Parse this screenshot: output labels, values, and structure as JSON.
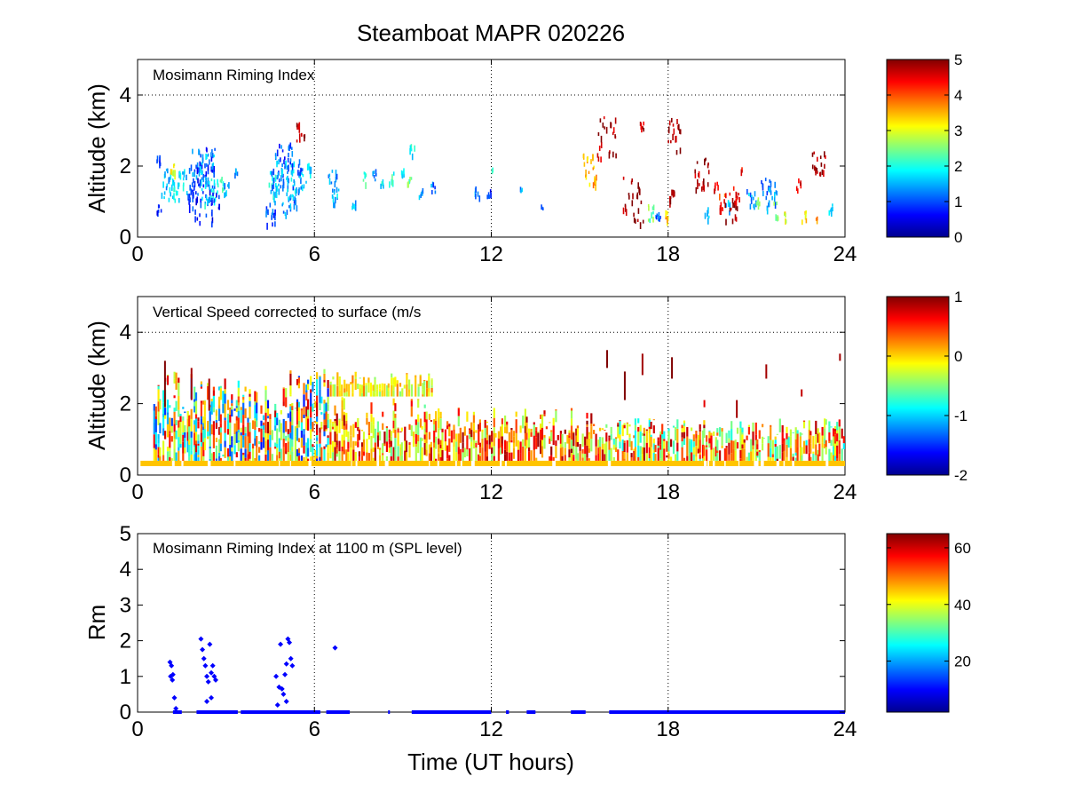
{
  "chart_data": [
    {
      "type": "heatmap",
      "figure_title": "Steamboat MAPR 020226",
      "annotation": "Mosimann Riming Index",
      "xlabel": "",
      "ylabel": "Altitude (km)",
      "xlim": [
        0,
        24
      ],
      "ylim": [
        0,
        5
      ],
      "xticks": [
        0,
        6,
        12,
        18,
        24
      ],
      "yticks": [
        0,
        2,
        4
      ],
      "grid_x": [
        6,
        12,
        18
      ],
      "grid_y": [
        4
      ],
      "colorbar": {
        "min": 0,
        "max": 5,
        "ticks": [
          0,
          1,
          2,
          3,
          4,
          5
        ]
      },
      "points": [
        [
          0.7,
          2.2,
          0.8,
          0.2
        ],
        [
          0.7,
          0.8,
          0.6,
          0.2
        ],
        [
          1.0,
          1.5,
          1.6,
          0.6
        ],
        [
          1.2,
          1.9,
          3.0,
          0.3
        ],
        [
          1.3,
          1.4,
          1.9,
          0.4
        ],
        [
          1.5,
          1.6,
          1.7,
          0.4
        ],
        [
          1.8,
          1.3,
          0.9,
          0.3
        ],
        [
          2.0,
          2.1,
          1.2,
          0.5
        ],
        [
          2.1,
          1.6,
          1.1,
          0.8
        ],
        [
          2.2,
          1.2,
          0.8,
          1.2
        ],
        [
          2.3,
          1.8,
          1.5,
          0.7
        ],
        [
          2.4,
          1.4,
          1.8,
          0.6
        ],
        [
          2.5,
          2.2,
          1.0,
          0.5
        ],
        [
          2.6,
          1.0,
          0.7,
          0.4
        ],
        [
          2.8,
          1.5,
          2.2,
          0.3
        ],
        [
          3.0,
          1.4,
          1.3,
          0.2
        ],
        [
          3.3,
          1.9,
          1.2,
          0.2
        ],
        [
          4.5,
          0.7,
          1.0,
          0.4
        ],
        [
          4.6,
          1.5,
          1.8,
          0.5
        ],
        [
          4.8,
          2.0,
          1.2,
          0.8
        ],
        [
          4.9,
          1.4,
          1.4,
          1.0
        ],
        [
          5.0,
          2.2,
          1.0,
          0.6
        ],
        [
          5.1,
          1.7,
          1.6,
          0.7
        ],
        [
          5.3,
          1.2,
          1.2,
          0.4
        ],
        [
          5.5,
          2.0,
          1.0,
          0.3
        ],
        [
          5.5,
          3.0,
          4.8,
          0.4
        ],
        [
          5.6,
          1.6,
          1.5,
          0.3
        ],
        [
          5.8,
          2.0,
          1.7,
          0.2
        ],
        [
          6.6,
          1.6,
          1.3,
          0.4
        ],
        [
          6.7,
          1.2,
          1.6,
          0.3
        ],
        [
          7.3,
          1.0,
          1.5,
          0.2
        ],
        [
          7.7,
          1.7,
          2.2,
          0.2
        ],
        [
          8.0,
          1.8,
          1.4,
          0.2
        ],
        [
          8.3,
          1.5,
          1.9,
          0.2
        ],
        [
          8.6,
          1.7,
          2.0,
          0.2
        ],
        [
          9.0,
          1.8,
          1.6,
          0.2
        ],
        [
          9.2,
          1.6,
          2.4,
          0.2
        ],
        [
          9.3,
          2.5,
          1.9,
          0.2
        ],
        [
          9.6,
          1.3,
          1.5,
          0.2
        ],
        [
          10.0,
          1.4,
          1.2,
          0.2
        ],
        [
          11.5,
          1.3,
          1.4,
          0.2
        ],
        [
          11.9,
          1.2,
          0.9,
          0.2
        ],
        [
          12.0,
          1.9,
          2.3,
          0.1
        ],
        [
          13.0,
          1.4,
          1.5,
          0.1
        ],
        [
          13.7,
          0.9,
          1.3,
          0.1
        ],
        [
          15.3,
          2.0,
          3.5,
          0.6
        ],
        [
          15.5,
          1.6,
          3.6,
          0.2
        ],
        [
          15.9,
          2.9,
          4.8,
          0.8
        ],
        [
          16.8,
          1.0,
          4.9,
          0.9
        ],
        [
          17.1,
          3.1,
          4.8,
          0.2
        ],
        [
          17.4,
          0.7,
          2.4,
          0.3
        ],
        [
          17.6,
          0.6,
          1.0,
          0.3
        ],
        [
          17.9,
          0.6,
          3.3,
          0.2
        ],
        [
          18.1,
          1.1,
          4.9,
          0.3
        ],
        [
          18.2,
          2.9,
          4.9,
          0.6
        ],
        [
          19.1,
          1.7,
          4.8,
          0.7
        ],
        [
          19.3,
          0.7,
          1.5,
          0.2
        ],
        [
          19.6,
          1.4,
          4.7,
          0.2
        ],
        [
          19.8,
          1.0,
          4.2,
          0.3
        ],
        [
          20.0,
          0.9,
          1.5,
          0.2
        ],
        [
          20.1,
          0.8,
          4.8,
          0.6
        ],
        [
          20.3,
          1.2,
          4.5,
          0.3
        ],
        [
          20.5,
          1.9,
          4.6,
          0.1
        ],
        [
          20.8,
          1.2,
          1.4,
          0.4
        ],
        [
          21.0,
          1.0,
          2.5,
          0.2
        ],
        [
          21.3,
          1.4,
          1.2,
          0.4
        ],
        [
          21.5,
          1.2,
          1.3,
          0.5
        ],
        [
          21.6,
          0.8,
          2.7,
          0.3
        ],
        [
          22.0,
          0.6,
          3.0,
          0.2
        ],
        [
          22.4,
          1.5,
          4.6,
          0.2
        ],
        [
          22.6,
          0.6,
          3.2,
          0.2
        ],
        [
          23.0,
          0.6,
          3.5,
          0.1
        ],
        [
          23.1,
          2.2,
          4.8,
          0.6
        ],
        [
          23.5,
          0.8,
          1.8,
          0.2
        ]
      ]
    },
    {
      "type": "heatmap",
      "annotation": "Vertical Speed corrected to surface (m/s",
      "xlabel": "",
      "ylabel": "Altitude (km)",
      "xlim": [
        0,
        24
      ],
      "ylim": [
        0,
        5
      ],
      "xticks": [
        0,
        6,
        12,
        18,
        24
      ],
      "yticks": [
        0,
        2,
        4
      ],
      "grid_x": [
        6,
        12,
        18
      ],
      "grid_y": [
        4
      ],
      "colorbar": {
        "min": -2,
        "max": 1,
        "ticks": [
          -2,
          -1,
          0,
          1
        ]
      },
      "surface_band": {
        "x": [
          0.1,
          24
        ],
        "y": [
          0.25,
          0.4
        ],
        "value": 0.05
      },
      "layers": [
        {
          "x": [
            0.5,
            4.0
          ],
          "y": [
            0.4,
            2.9
          ],
          "vmin": -1.5,
          "vmax": 0.8
        },
        {
          "x": [
            4.0,
            6.5
          ],
          "y": [
            0.4,
            3.0
          ],
          "vmin": -1.6,
          "vmax": 0.9
        },
        {
          "x": [
            6.5,
            10.0
          ],
          "y": [
            0.4,
            2.2
          ],
          "vmin": -0.6,
          "vmax": 0.9
        },
        {
          "x": [
            6.5,
            10.0
          ],
          "y": [
            2.2,
            2.9
          ],
          "vmin": -0.5,
          "vmax": 0.3
        },
        {
          "x": [
            10.0,
            15.5
          ],
          "y": [
            0.4,
            1.9
          ],
          "vmin": -0.5,
          "vmax": 0.95
        },
        {
          "x": [
            15.5,
            24.0
          ],
          "y": [
            0.4,
            1.6
          ],
          "vmin": -0.9,
          "vmax": 0.9
        }
      ],
      "streaks": [
        [
          0.9,
          1.9,
          3.2,
          1.0
        ],
        [
          1.8,
          2.1,
          3.0,
          0.9
        ],
        [
          2.4,
          1.8,
          2.7,
          0.9
        ],
        [
          15.9,
          3.0,
          3.5,
          1.0
        ],
        [
          16.5,
          2.1,
          2.9,
          1.0
        ],
        [
          17.1,
          2.8,
          3.4,
          0.9
        ],
        [
          18.1,
          2.7,
          3.3,
          1.0
        ],
        [
          19.2,
          1.9,
          2.1,
          0.7
        ],
        [
          20.3,
          1.6,
          2.1,
          0.9
        ],
        [
          21.3,
          2.7,
          3.1,
          0.9
        ],
        [
          22.5,
          2.2,
          2.4,
          0.8
        ],
        [
          23.8,
          3.2,
          3.4,
          0.9
        ]
      ]
    },
    {
      "type": "scatter",
      "annotation": "Mosimann Riming Index at 1100 m (SPL level)",
      "xlabel": "Time (UT hours)",
      "ylabel": "Rm",
      "xlim": [
        0,
        24
      ],
      "ylim": [
        0,
        5
      ],
      "xticks": [
        0,
        6,
        12,
        18,
        24
      ],
      "yticks": [
        0,
        1,
        2,
        3,
        4,
        5
      ],
      "grid_x": [
        6,
        12,
        18
      ],
      "grid_y": [],
      "colorbar": {
        "min": 2,
        "max": 65,
        "ticks": [
          20,
          40,
          60
        ]
      },
      "marker_color": "#0000ff",
      "points": [
        [
          1.1,
          1.4
        ],
        [
          1.15,
          1.3
        ],
        [
          1.12,
          1.0
        ],
        [
          1.18,
          0.9
        ],
        [
          1.2,
          1.05
        ],
        [
          1.25,
          0.4
        ],
        [
          1.3,
          0.1
        ],
        [
          2.15,
          2.05
        ],
        [
          2.2,
          1.75
        ],
        [
          2.25,
          1.5
        ],
        [
          2.3,
          1.3
        ],
        [
          2.35,
          1.0
        ],
        [
          2.4,
          0.85
        ],
        [
          2.45,
          1.9
        ],
        [
          2.5,
          1.1
        ],
        [
          2.55,
          1.3
        ],
        [
          2.6,
          1.0
        ],
        [
          2.65,
          0.9
        ],
        [
          2.5,
          0.4
        ],
        [
          2.35,
          0.3
        ],
        [
          4.7,
          1.0
        ],
        [
          4.8,
          0.7
        ],
        [
          4.85,
          1.9
        ],
        [
          4.9,
          0.65
        ],
        [
          4.95,
          0.5
        ],
        [
          5.0,
          1.05
        ],
        [
          5.05,
          1.35
        ],
        [
          5.1,
          2.05
        ],
        [
          5.15,
          1.95
        ],
        [
          5.2,
          1.5
        ],
        [
          5.25,
          1.3
        ],
        [
          5.05,
          0.3
        ],
        [
          4.75,
          0.2
        ],
        [
          6.7,
          1.8
        ]
      ],
      "zero_ranges": [
        [
          1.2,
          1.5
        ],
        [
          2.0,
          3.4
        ],
        [
          3.5,
          6.2
        ],
        [
          6.4,
          7.2
        ],
        [
          8.5,
          8.5
        ],
        [
          9.3,
          12.0
        ],
        [
          12.5,
          12.6
        ],
        [
          13.2,
          13.5
        ],
        [
          14.7,
          15.2
        ],
        [
          16.0,
          24.0
        ]
      ]
    }
  ]
}
